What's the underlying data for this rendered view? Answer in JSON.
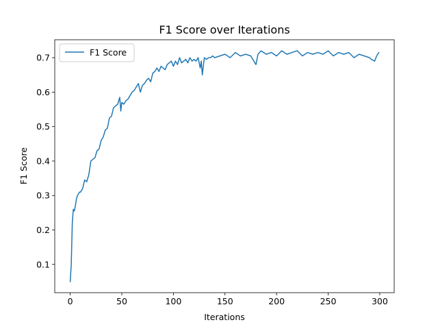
{
  "chart_data": {
    "type": "line",
    "title": "F1 Score over Iterations",
    "xlabel": "Iterations",
    "ylabel": "F1 Score",
    "xlim": [
      -15,
      314
    ],
    "ylim": [
      0.018,
      0.752
    ],
    "xticks": [
      0,
      50,
      100,
      150,
      200,
      250,
      300
    ],
    "yticks": [
      0.1,
      0.2,
      0.3,
      0.4,
      0.5,
      0.6,
      0.7
    ],
    "xtick_labels": [
      "0",
      "50",
      "100",
      "150",
      "200",
      "250",
      "300"
    ],
    "ytick_labels": [
      "0.1",
      "0.2",
      "0.3",
      "0.4",
      "0.5",
      "0.6",
      "0.7"
    ],
    "legend": {
      "position": "top-left",
      "entries": [
        "F1 Score"
      ]
    },
    "grid": false,
    "series": [
      {
        "name": "F1 Score",
        "color": "#1f77b4",
        "x": [
          0,
          1,
          2,
          3,
          4,
          5,
          6,
          7,
          8,
          9,
          10,
          12,
          14,
          16,
          18,
          20,
          22,
          24,
          26,
          28,
          30,
          32,
          34,
          36,
          38,
          40,
          42,
          44,
          46,
          48,
          49,
          50,
          52,
          54,
          56,
          58,
          60,
          62,
          64,
          66,
          68,
          70,
          72,
          74,
          76,
          78,
          80,
          82,
          84,
          86,
          88,
          90,
          92,
          94,
          96,
          98,
          100,
          102,
          104,
          106,
          108,
          110,
          112,
          114,
          116,
          118,
          120,
          122,
          124,
          126,
          127,
          128,
          130,
          132,
          134,
          136,
          138,
          140,
          145,
          150,
          155,
          160,
          165,
          170,
          175,
          180,
          182,
          185,
          190,
          195,
          200,
          205,
          210,
          215,
          220,
          225,
          230,
          235,
          240,
          245,
          250,
          255,
          260,
          265,
          270,
          275,
          280,
          285,
          290,
          292,
          295,
          297,
          299
        ],
        "values": [
          0.05,
          0.1,
          0.22,
          0.26,
          0.255,
          0.27,
          0.29,
          0.3,
          0.305,
          0.31,
          0.31,
          0.32,
          0.345,
          0.34,
          0.36,
          0.4,
          0.405,
          0.41,
          0.43,
          0.435,
          0.46,
          0.47,
          0.49,
          0.495,
          0.525,
          0.53,
          0.555,
          0.56,
          0.565,
          0.585,
          0.545,
          0.57,
          0.565,
          0.575,
          0.58,
          0.59,
          0.6,
          0.605,
          0.615,
          0.625,
          0.6,
          0.62,
          0.625,
          0.635,
          0.64,
          0.63,
          0.655,
          0.66,
          0.67,
          0.66,
          0.675,
          0.67,
          0.665,
          0.68,
          0.685,
          0.69,
          0.675,
          0.69,
          0.68,
          0.7,
          0.685,
          0.69,
          0.695,
          0.685,
          0.7,
          0.69,
          0.695,
          0.69,
          0.7,
          0.67,
          0.69,
          0.65,
          0.7,
          0.695,
          0.7,
          0.7,
          0.705,
          0.7,
          0.705,
          0.71,
          0.7,
          0.715,
          0.705,
          0.71,
          0.705,
          0.68,
          0.71,
          0.72,
          0.71,
          0.715,
          0.705,
          0.72,
          0.71,
          0.715,
          0.72,
          0.705,
          0.715,
          0.71,
          0.715,
          0.71,
          0.72,
          0.705,
          0.715,
          0.71,
          0.715,
          0.7,
          0.71,
          0.705,
          0.7,
          0.695,
          0.69,
          0.705,
          0.715
        ]
      }
    ]
  }
}
